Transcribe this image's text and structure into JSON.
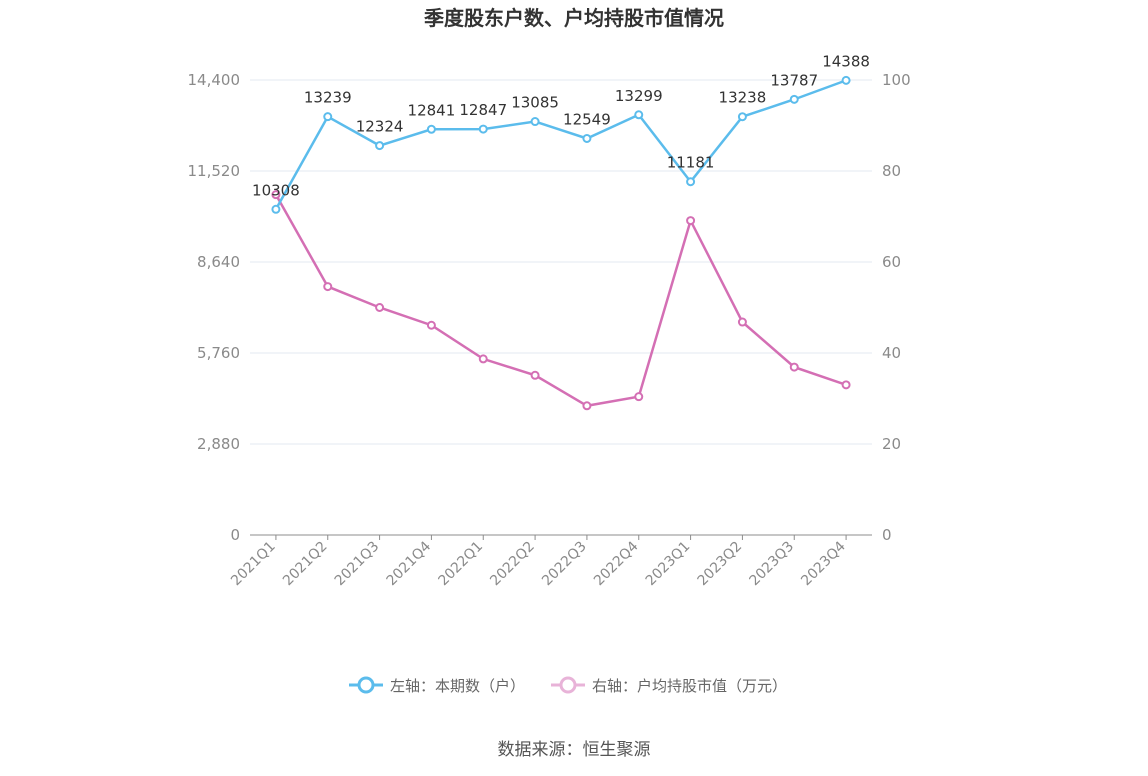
{
  "chart_data": {
    "type": "line",
    "title": "季度股东户数、户均持股市值情况",
    "categories": [
      "2021Q1",
      "2021Q2",
      "2021Q3",
      "2021Q4",
      "2022Q1",
      "2022Q2",
      "2022Q3",
      "2022Q4",
      "2023Q1",
      "2023Q2",
      "2023Q3",
      "2023Q4"
    ],
    "left_axis": {
      "min": 0,
      "max": 14400,
      "ticks": [
        "0",
        "2,880",
        "5,760",
        "8,640",
        "11,520",
        "14,400"
      ]
    },
    "right_axis": {
      "min": 0,
      "max": 100,
      "ticks": [
        "0",
        "20",
        "40",
        "60",
        "80",
        "100"
      ]
    },
    "series": [
      {
        "name": "左轴：本期数（户）",
        "axis": "left",
        "color": "#5bbcec",
        "values": [
          10308,
          13239,
          12324,
          12841,
          12847,
          13085,
          12549,
          13299,
          11181,
          13238,
          13787,
          14388
        ],
        "labels": [
          "10308",
          "13239",
          "12324",
          "12841",
          "12847",
          "13085",
          "12549",
          "13299",
          "11181",
          "13238",
          "13787",
          "14388"
        ]
      },
      {
        "name": "右轴：户均持股市值（万元）",
        "axis": "right",
        "color": "#d46fb4",
        "legend_color": "#e8b3d8",
        "values": [
          74.8,
          54.6,
          50.0,
          46.1,
          38.7,
          35.1,
          28.4,
          30.4,
          69.1,
          46.8,
          36.9,
          33.0
        ]
      }
    ],
    "grid": true,
    "legend_position": "bottom"
  },
  "source": "数据来源：恒生聚源"
}
